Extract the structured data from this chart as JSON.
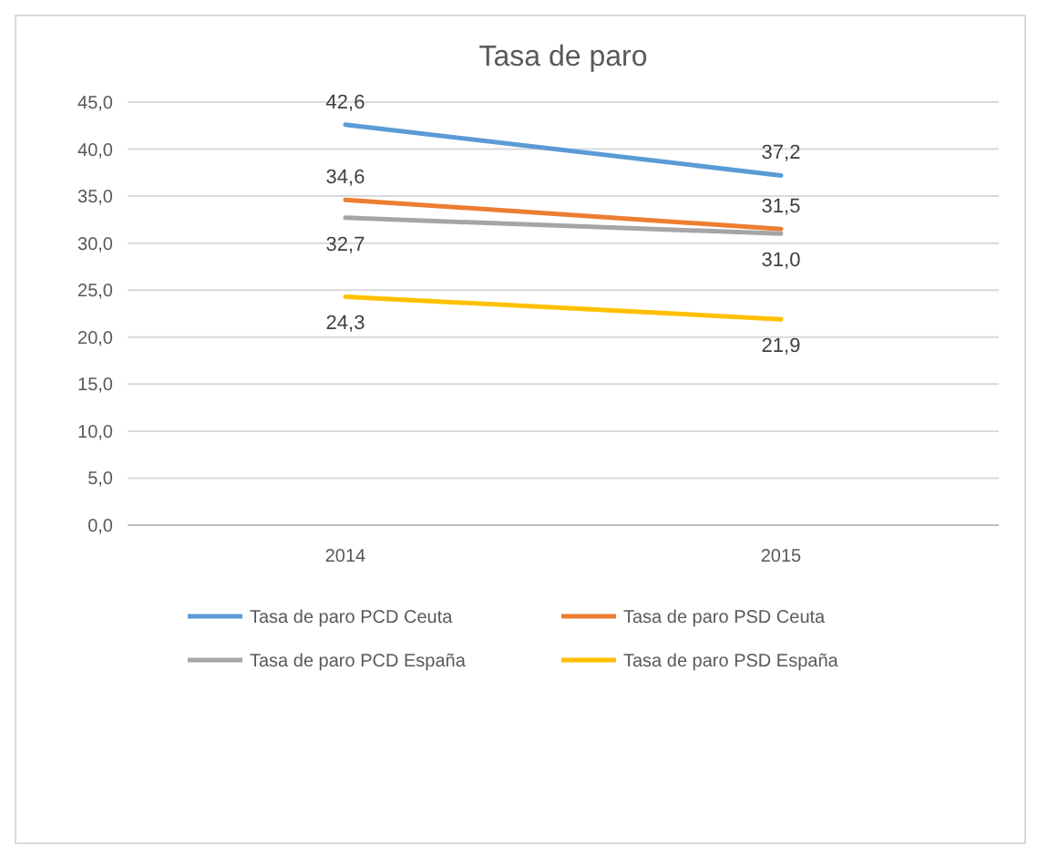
{
  "chart_data": {
    "type": "line",
    "title": "Tasa de paro",
    "categories": [
      "2014",
      "2015"
    ],
    "series": [
      {
        "name": "Tasa de paro PCD Ceuta",
        "color": "#5b9bd5",
        "values": [
          42.6,
          37.2
        ],
        "value_labels": [
          "42,6",
          "37,2"
        ]
      },
      {
        "name": "Tasa de paro PSD Ceuta",
        "color": "#ed7d31",
        "values": [
          34.6,
          31.5
        ],
        "value_labels": [
          "34,6",
          "31,5"
        ]
      },
      {
        "name": "Tasa de paro PCD España",
        "color": "#a5a5a5",
        "values": [
          32.7,
          31.0
        ],
        "value_labels": [
          "32,7",
          "31,0"
        ]
      },
      {
        "name": "Tasa de paro PSD España",
        "color": "#ffc000",
        "values": [
          24.3,
          21.9
        ],
        "value_labels": [
          "24,3",
          "21,9"
        ]
      }
    ],
    "ylim": [
      0,
      45
    ],
    "yticks": [
      {
        "value": 0,
        "label": "0,0"
      },
      {
        "value": 5,
        "label": "5,0"
      },
      {
        "value": 10,
        "label": "10,0"
      },
      {
        "value": 15,
        "label": "15,0"
      },
      {
        "value": 20,
        "label": "20,0"
      },
      {
        "value": 25,
        "label": "25,0"
      },
      {
        "value": 30,
        "label": "30,0"
      },
      {
        "value": 35,
        "label": "35,0"
      },
      {
        "value": 40,
        "label": "40,0"
      },
      {
        "value": 45,
        "label": "45,0"
      }
    ],
    "grid": "y",
    "legend": "bottom",
    "marker": "none",
    "line_style": "solid"
  }
}
